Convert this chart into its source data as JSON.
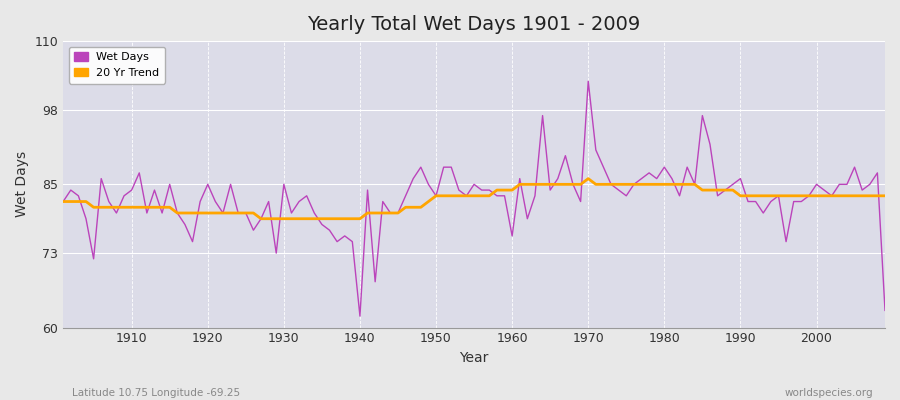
{
  "title": "Yearly Total Wet Days 1901 - 2009",
  "xlabel": "Year",
  "ylabel": "Wet Days",
  "xlim": [
    1901,
    2009
  ],
  "ylim": [
    60,
    110
  ],
  "yticks": [
    60,
    73,
    85,
    98,
    110
  ],
  "xticks": [
    1910,
    1920,
    1930,
    1940,
    1950,
    1960,
    1970,
    1980,
    1990,
    2000
  ],
  "fig_bg_color": "#e8e8e8",
  "plot_bg_color": "#dcdce8",
  "line_color": "#bb44bb",
  "trend_color": "#ffa500",
  "subtitle_left": "Latitude 10.75 Longitude -69.25",
  "subtitle_right": "worldspecies.org",
  "years": [
    1901,
    1902,
    1903,
    1904,
    1905,
    1906,
    1907,
    1908,
    1909,
    1910,
    1911,
    1912,
    1913,
    1914,
    1915,
    1916,
    1917,
    1918,
    1919,
    1920,
    1921,
    1922,
    1923,
    1924,
    1925,
    1926,
    1927,
    1928,
    1929,
    1930,
    1931,
    1932,
    1933,
    1934,
    1935,
    1936,
    1937,
    1938,
    1939,
    1940,
    1941,
    1942,
    1943,
    1944,
    1945,
    1946,
    1947,
    1948,
    1949,
    1950,
    1951,
    1952,
    1953,
    1954,
    1955,
    1956,
    1957,
    1958,
    1959,
    1960,
    1961,
    1962,
    1963,
    1964,
    1965,
    1966,
    1967,
    1968,
    1969,
    1970,
    1971,
    1972,
    1973,
    1974,
    1975,
    1976,
    1977,
    1978,
    1979,
    1980,
    1981,
    1982,
    1983,
    1984,
    1985,
    1986,
    1987,
    1988,
    1989,
    1990,
    1991,
    1992,
    1993,
    1994,
    1995,
    1996,
    1997,
    1998,
    1999,
    2000,
    2001,
    2002,
    2003,
    2004,
    2005,
    2006,
    2007,
    2008,
    2009
  ],
  "wet_days": [
    82,
    84,
    83,
    79,
    72,
    86,
    82,
    80,
    83,
    84,
    87,
    80,
    84,
    80,
    85,
    80,
    78,
    75,
    82,
    85,
    82,
    80,
    85,
    80,
    80,
    77,
    79,
    82,
    73,
    85,
    80,
    82,
    83,
    80,
    78,
    77,
    75,
    76,
    75,
    62,
    84,
    68,
    82,
    80,
    80,
    83,
    86,
    88,
    85,
    83,
    88,
    88,
    84,
    83,
    85,
    84,
    84,
    83,
    83,
    76,
    86,
    79,
    83,
    97,
    84,
    86,
    90,
    85,
    82,
    103,
    91,
    88,
    85,
    84,
    83,
    85,
    86,
    87,
    86,
    88,
    86,
    83,
    88,
    85,
    97,
    92,
    83,
    84,
    85,
    86,
    82,
    82,
    80,
    82,
    83,
    75,
    82,
    82,
    83,
    85,
    84,
    83,
    85,
    85,
    88,
    84,
    85,
    87,
    63
  ],
  "trend_values": [
    82,
    82,
    82,
    82,
    81,
    81,
    81,
    81,
    81,
    81,
    81,
    81,
    81,
    81,
    81,
    80,
    80,
    80,
    80,
    80,
    80,
    80,
    80,
    80,
    80,
    80,
    79,
    79,
    79,
    79,
    79,
    79,
    79,
    79,
    79,
    79,
    79,
    79,
    79,
    79,
    80,
    80,
    80,
    80,
    80,
    81,
    81,
    81,
    82,
    83,
    83,
    83,
    83,
    83,
    83,
    83,
    83,
    84,
    84,
    84,
    85,
    85,
    85,
    85,
    85,
    85,
    85,
    85,
    85,
    86,
    85,
    85,
    85,
    85,
    85,
    85,
    85,
    85,
    85,
    85,
    85,
    85,
    85,
    85,
    84,
    84,
    84,
    84,
    84,
    83,
    83,
    83,
    83,
    83,
    83,
    83,
    83,
    83,
    83,
    83,
    83,
    83,
    83,
    83,
    83,
    83,
    83,
    83,
    83
  ]
}
